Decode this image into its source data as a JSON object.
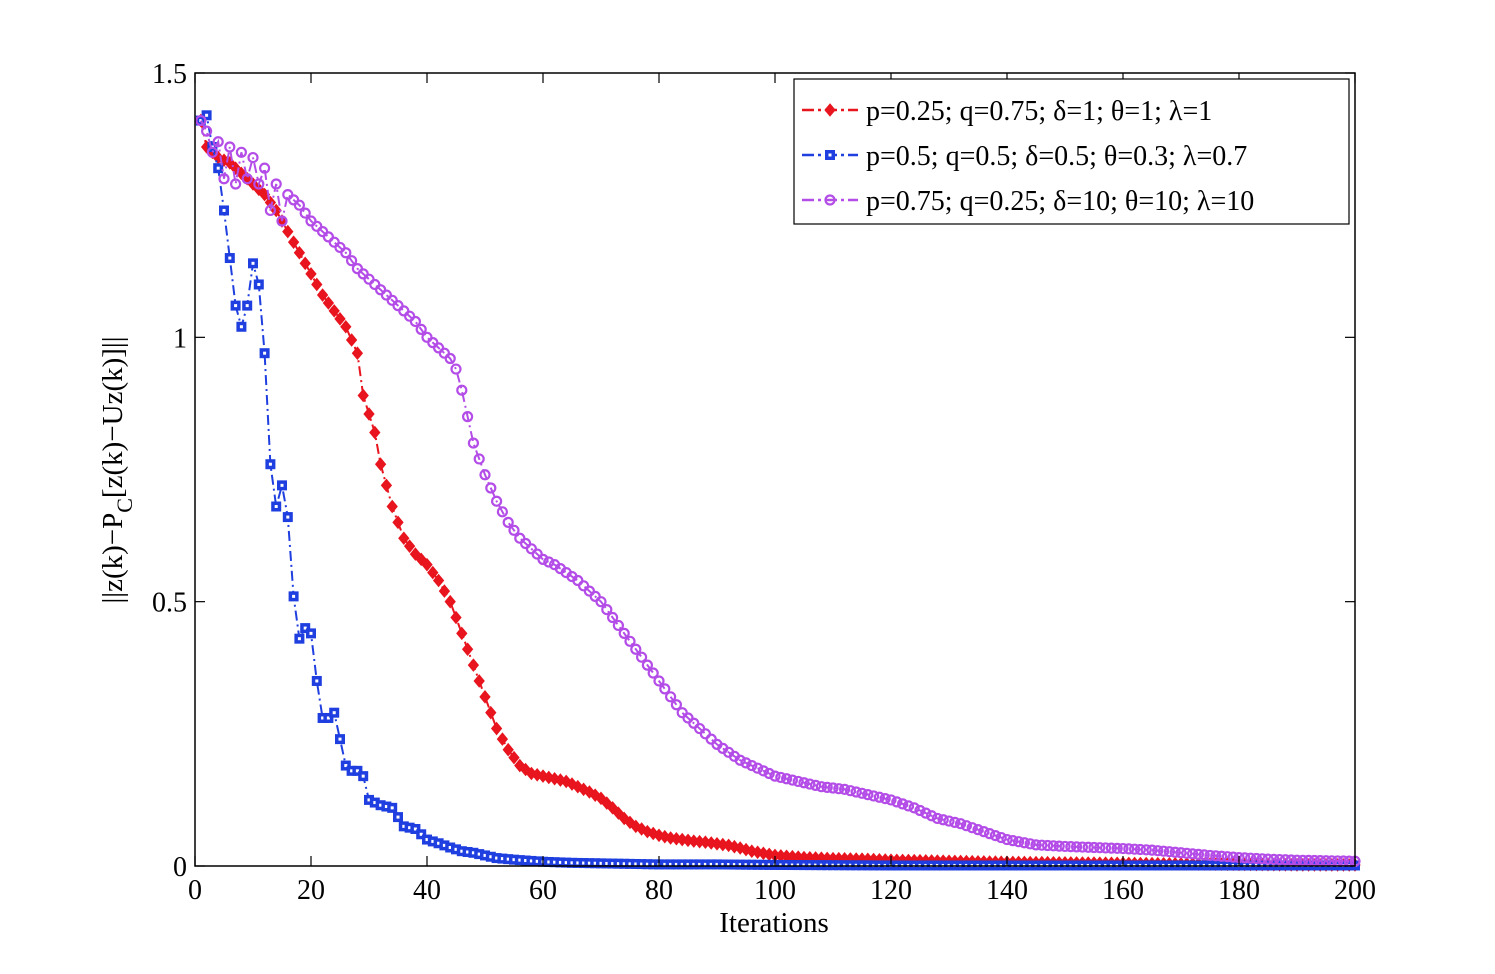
{
  "chart_data": {
    "type": "line",
    "title": "",
    "xlabel": "Iterations",
    "ylabel": "||z(k)−P_C[z(k)−Uz(k)]||",
    "ylabel_parts": {
      "main": "||z(k)−P",
      "sub": "C",
      "rest": "[z(k)−Uz(k)]||"
    },
    "xlim": [
      0,
      200
    ],
    "ylim": [
      0,
      1.5
    ],
    "xticks": [
      0,
      20,
      40,
      60,
      80,
      100,
      120,
      140,
      160,
      180,
      200
    ],
    "yticks": [
      0,
      0.5,
      1,
      1.5
    ],
    "xtick_labels": [
      "0",
      "20",
      "40",
      "60",
      "80",
      "100",
      "120",
      "140",
      "160",
      "180",
      "200"
    ],
    "ytick_labels": [
      "0",
      "0.5",
      "1",
      "1.5"
    ],
    "grid": false,
    "legend_position": "top-right",
    "series": [
      {
        "name": "p=0.25; q=0.75; δ=1; θ=1; λ=1",
        "color": "#e8141e",
        "marker": "diamond",
        "linestyle": "dashdot",
        "points": [
          [
            1,
            1.41
          ],
          [
            2,
            1.36
          ],
          [
            4,
            1.34
          ],
          [
            6,
            1.33
          ],
          [
            8,
            1.31
          ],
          [
            10,
            1.29
          ],
          [
            12,
            1.27
          ],
          [
            14,
            1.24
          ],
          [
            16,
            1.2
          ],
          [
            18,
            1.16
          ],
          [
            20,
            1.12
          ],
          [
            22,
            1.08
          ],
          [
            24,
            1.05
          ],
          [
            26,
            1.02
          ],
          [
            28,
            0.97
          ],
          [
            29,
            0.89
          ],
          [
            31,
            0.82
          ],
          [
            32,
            0.76
          ],
          [
            34,
            0.68
          ],
          [
            36,
            0.62
          ],
          [
            38,
            0.59
          ],
          [
            40,
            0.57
          ],
          [
            42,
            0.54
          ],
          [
            44,
            0.5
          ],
          [
            46,
            0.44
          ],
          [
            48,
            0.38
          ],
          [
            50,
            0.32
          ],
          [
            52,
            0.26
          ],
          [
            54,
            0.22
          ],
          [
            56,
            0.19
          ],
          [
            58,
            0.175
          ],
          [
            60,
            0.17
          ],
          [
            62,
            0.165
          ],
          [
            64,
            0.16
          ],
          [
            66,
            0.15
          ],
          [
            68,
            0.14
          ],
          [
            70,
            0.128
          ],
          [
            72,
            0.11
          ],
          [
            74,
            0.09
          ],
          [
            76,
            0.075
          ],
          [
            78,
            0.065
          ],
          [
            80,
            0.058
          ],
          [
            82,
            0.053
          ],
          [
            84,
            0.05
          ],
          [
            86,
            0.047
          ],
          [
            88,
            0.045
          ],
          [
            90,
            0.042
          ],
          [
            92,
            0.039
          ],
          [
            94,
            0.034
          ],
          [
            96,
            0.028
          ],
          [
            98,
            0.024
          ],
          [
            100,
            0.02
          ],
          [
            105,
            0.016
          ],
          [
            110,
            0.014
          ],
          [
            115,
            0.013
          ],
          [
            120,
            0.011
          ],
          [
            130,
            0.009
          ],
          [
            140,
            0.007
          ],
          [
            150,
            0.006
          ],
          [
            160,
            0.005
          ],
          [
            170,
            0.004
          ],
          [
            180,
            0.003
          ],
          [
            190,
            0.002
          ],
          [
            200,
            0.002
          ]
        ]
      },
      {
        "name": "p=0.5; q=0.5; δ=0.5; θ=0.3; λ=0.7",
        "color": "#1f3fe0",
        "marker": "square",
        "linestyle": "dashdot",
        "points": [
          [
            1,
            1.41
          ],
          [
            2,
            1.42
          ],
          [
            3,
            1.36
          ],
          [
            4,
            1.32
          ],
          [
            5,
            1.24
          ],
          [
            6,
            1.15
          ],
          [
            7,
            1.06
          ],
          [
            8,
            1.02
          ],
          [
            9,
            1.06
          ],
          [
            10,
            1.14
          ],
          [
            11,
            1.1
          ],
          [
            12,
            0.97
          ],
          [
            13,
            0.76
          ],
          [
            14,
            0.68
          ],
          [
            15,
            0.72
          ],
          [
            16,
            0.66
          ],
          [
            17,
            0.51
          ],
          [
            18,
            0.43
          ],
          [
            19,
            0.45
          ],
          [
            20,
            0.44
          ],
          [
            21,
            0.35
          ],
          [
            22,
            0.28
          ],
          [
            23,
            0.28
          ],
          [
            24,
            0.29
          ],
          [
            25,
            0.24
          ],
          [
            26,
            0.19
          ],
          [
            27,
            0.18
          ],
          [
            28,
            0.18
          ],
          [
            29,
            0.17
          ],
          [
            30,
            0.125
          ],
          [
            32,
            0.115
          ],
          [
            34,
            0.11
          ],
          [
            36,
            0.075
          ],
          [
            38,
            0.07
          ],
          [
            40,
            0.05
          ],
          [
            42,
            0.043
          ],
          [
            44,
            0.035
          ],
          [
            46,
            0.028
          ],
          [
            48,
            0.025
          ],
          [
            50,
            0.02
          ],
          [
            52,
            0.015
          ],
          [
            55,
            0.012
          ],
          [
            60,
            0.008
          ],
          [
            65,
            0.006
          ],
          [
            70,
            0.005
          ],
          [
            80,
            0.003
          ],
          [
            90,
            0.003
          ],
          [
            100,
            0.002
          ],
          [
            120,
            0.001
          ],
          [
            140,
            0.001
          ],
          [
            160,
            0.001
          ],
          [
            180,
            0.001
          ],
          [
            200,
            0.001
          ]
        ]
      },
      {
        "name": "p=0.75; q=0.25; δ=10; θ=10; λ=10",
        "color": "#b44de8",
        "marker": "circle",
        "linestyle": "dashdot",
        "points": [
          [
            1,
            1.41
          ],
          [
            2,
            1.39
          ],
          [
            3,
            1.35
          ],
          [
            4,
            1.37
          ],
          [
            5,
            1.3
          ],
          [
            6,
            1.36
          ],
          [
            7,
            1.29
          ],
          [
            8,
            1.35
          ],
          [
            9,
            1.3
          ],
          [
            10,
            1.34
          ],
          [
            11,
            1.29
          ],
          [
            12,
            1.32
          ],
          [
            13,
            1.24
          ],
          [
            14,
            1.29
          ],
          [
            15,
            1.22
          ],
          [
            16,
            1.27
          ],
          [
            18,
            1.25
          ],
          [
            20,
            1.22
          ],
          [
            22,
            1.2
          ],
          [
            24,
            1.18
          ],
          [
            26,
            1.16
          ],
          [
            28,
            1.13
          ],
          [
            30,
            1.11
          ],
          [
            32,
            1.09
          ],
          [
            34,
            1.07
          ],
          [
            36,
            1.05
          ],
          [
            38,
            1.03
          ],
          [
            40,
            1.0
          ],
          [
            42,
            0.98
          ],
          [
            44,
            0.96
          ],
          [
            45,
            0.94
          ],
          [
            46,
            0.9
          ],
          [
            47,
            0.85
          ],
          [
            48,
            0.8
          ],
          [
            50,
            0.74
          ],
          [
            52,
            0.69
          ],
          [
            54,
            0.65
          ],
          [
            56,
            0.62
          ],
          [
            58,
            0.6
          ],
          [
            60,
            0.58
          ],
          [
            62,
            0.57
          ],
          [
            64,
            0.555
          ],
          [
            66,
            0.54
          ],
          [
            68,
            0.52
          ],
          [
            70,
            0.5
          ],
          [
            72,
            0.47
          ],
          [
            74,
            0.44
          ],
          [
            76,
            0.41
          ],
          [
            78,
            0.38
          ],
          [
            80,
            0.35
          ],
          [
            82,
            0.32
          ],
          [
            84,
            0.29
          ],
          [
            86,
            0.27
          ],
          [
            88,
            0.25
          ],
          [
            90,
            0.23
          ],
          [
            92,
            0.215
          ],
          [
            94,
            0.2
          ],
          [
            96,
            0.19
          ],
          [
            98,
            0.18
          ],
          [
            100,
            0.17
          ],
          [
            104,
            0.16
          ],
          [
            108,
            0.15
          ],
          [
            112,
            0.145
          ],
          [
            116,
            0.135
          ],
          [
            120,
            0.125
          ],
          [
            124,
            0.11
          ],
          [
            128,
            0.09
          ],
          [
            132,
            0.08
          ],
          [
            136,
            0.065
          ],
          [
            140,
            0.05
          ],
          [
            145,
            0.04
          ],
          [
            150,
            0.037
          ],
          [
            155,
            0.035
          ],
          [
            160,
            0.033
          ],
          [
            165,
            0.03
          ],
          [
            170,
            0.025
          ],
          [
            175,
            0.02
          ],
          [
            180,
            0.016
          ],
          [
            185,
            0.013
          ],
          [
            190,
            0.011
          ],
          [
            195,
            0.01
          ],
          [
            200,
            0.009
          ]
        ]
      }
    ]
  }
}
